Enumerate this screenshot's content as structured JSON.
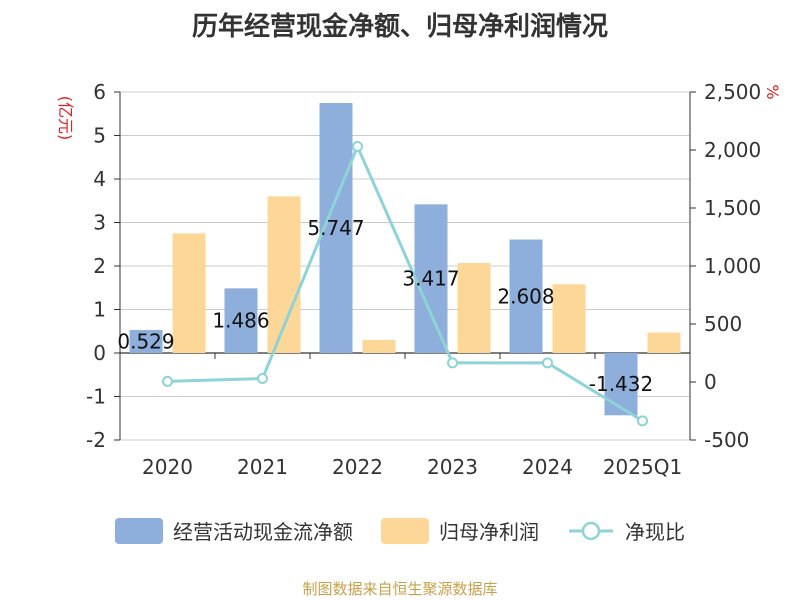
{
  "title": "历年经营现金净额、归母净利润情况",
  "source": "制图数据来自恒生聚源数据库",
  "colors": {
    "cash_flow": "#8eaedb",
    "net_profit": "#fdd797",
    "ratio": "#8ed3d8",
    "axis_unit": "#e02020",
    "grid": "#cccccc",
    "axis_text": "#333333"
  },
  "chart_data": {
    "type": "bar",
    "title": "历年经营现金净额、归母净利润情况",
    "categories": [
      "2020",
      "2021",
      "2022",
      "2023",
      "2024",
      "2025Q1"
    ],
    "y_left": {
      "label": "(亿元)",
      "min": -2,
      "max": 6,
      "ticks": [
        "-2",
        "-1",
        "0",
        "1",
        "2",
        "3",
        "4",
        "5",
        "6"
      ]
    },
    "y_right": {
      "label": "%",
      "min": -500,
      "max": 2500,
      "ticks": [
        "-500",
        "0",
        "500",
        "1,000",
        "1,500",
        "2,000",
        "2,500"
      ]
    },
    "series": [
      {
        "name": "经营活动现金流净额",
        "kind": "bar",
        "axis": "left",
        "values": [
          0.529,
          1.486,
          5.747,
          3.417,
          2.608,
          -1.432
        ],
        "labels": [
          "0.529",
          "1.486",
          "5.747",
          "3.417",
          "2.608",
          "-1.432"
        ]
      },
      {
        "name": "归母净利润",
        "kind": "bar",
        "axis": "left",
        "values": [
          2.75,
          3.6,
          0.3,
          2.07,
          1.58,
          0.47
        ]
      },
      {
        "name": "净现比",
        "kind": "line",
        "axis": "right",
        "values": [
          5,
          30,
          2030,
          165,
          165,
          -335
        ]
      }
    ],
    "grid": true,
    "legend_position": "bottom"
  }
}
